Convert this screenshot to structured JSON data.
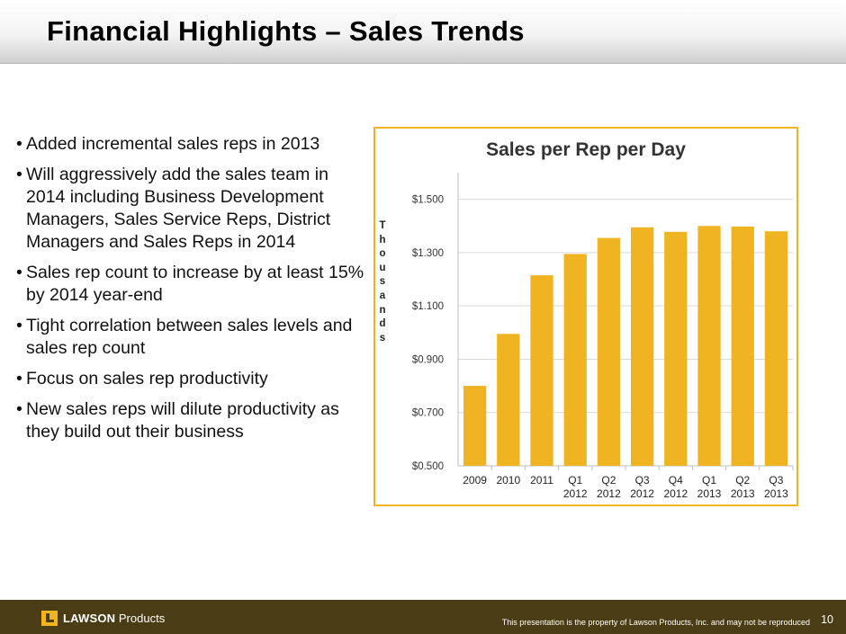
{
  "header": {
    "title": "Financial Highlights – Sales Trends"
  },
  "bullets": [
    "Added incremental sales reps in 2013",
    "Will aggressively add the sales team in 2014 including Business Development Managers, Sales Service Reps, District Managers and Sales Reps in 2014",
    "Sales rep count to increase by at least 15% by 2014 year-end",
    "Tight correlation between sales levels and sales rep count",
    "Focus on sales rep productivity",
    "New sales reps will dilute productivity as they build out their business"
  ],
  "bullet_symbol": "•",
  "chart_data": {
    "type": "bar",
    "title": "Sales per Rep per Day",
    "ylabel": "Thousands",
    "xlabel": "",
    "categories": [
      [
        "2009"
      ],
      [
        "2010"
      ],
      [
        "2011"
      ],
      [
        "Q1",
        "2012"
      ],
      [
        "Q2",
        "2012"
      ],
      [
        "Q3",
        "2012"
      ],
      [
        "Q4",
        "2012"
      ],
      [
        "Q1",
        "2013"
      ],
      [
        "Q2",
        "2013"
      ],
      [
        "Q3",
        "2013"
      ]
    ],
    "values": [
      0.8,
      0.995,
      1.215,
      1.295,
      1.355,
      1.395,
      1.378,
      1.4,
      1.398,
      1.38
    ],
    "ylim": [
      0.5,
      1.6
    ],
    "yticks": [
      0.5,
      0.7,
      0.9,
      1.1,
      1.3,
      1.5
    ],
    "ytick_labels": [
      "$0.500",
      "$0.700",
      "$0.900",
      "$1.100",
      "$1.300",
      "$1.500"
    ],
    "grid": true,
    "legend": "none",
    "colors": {
      "bar": "#f0b423",
      "grid": "#d9d9d9",
      "axis": "#bfbfbf",
      "frame": "#f0b423"
    }
  },
  "footer": {
    "brand_bold": "LAWSON",
    "brand_rest": "Products",
    "notice": "This presentation is the property of Lawson Products, Inc. and may not be reproduced",
    "page": "10"
  }
}
